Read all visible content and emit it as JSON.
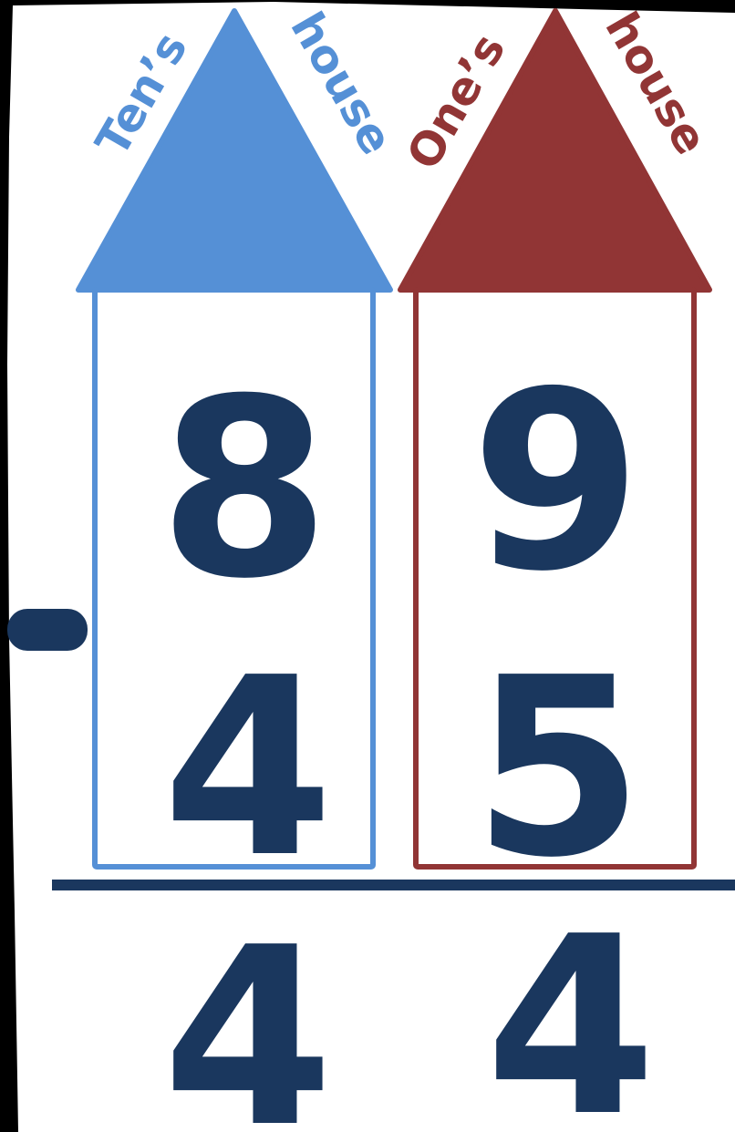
{
  "colors": {
    "tens": "#5590d6",
    "ones": "#913535",
    "digits": "#1a375e",
    "paper": "#ffffff",
    "frame": "#000000"
  },
  "houses": {
    "tens": {
      "label_word1": "Ten’s",
      "label_word2": "house"
    },
    "ones": {
      "label_word1": "One’s",
      "label_word2": "house"
    }
  },
  "problem": {
    "operator": "-",
    "minuend": {
      "tens": "8",
      "ones": "9"
    },
    "subtrahend": {
      "tens": "4",
      "ones": "5"
    },
    "difference": {
      "tens": "4",
      "ones": "4"
    }
  }
}
